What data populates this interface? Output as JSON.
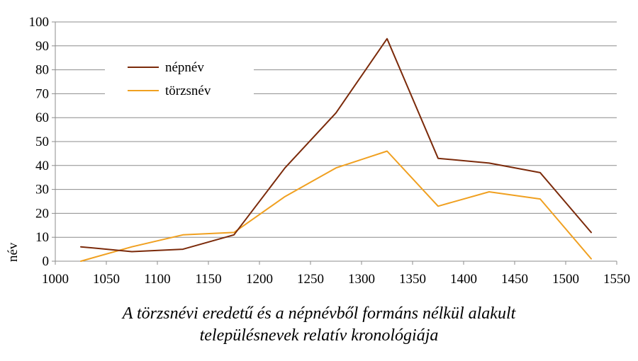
{
  "chart_data": {
    "type": "line",
    "title": "",
    "xlabel": "",
    "ylabel": "név",
    "xlim": [
      1000,
      1550
    ],
    "ylim": [
      0,
      100
    ],
    "xticks": [
      1000,
      1050,
      1100,
      1150,
      1200,
      1250,
      1300,
      1350,
      1400,
      1450,
      1500,
      1550
    ],
    "yticks": [
      0,
      10,
      20,
      30,
      40,
      50,
      60,
      70,
      80,
      90,
      100
    ],
    "grid": "horizontal",
    "legend_position": "top-left",
    "series": [
      {
        "name": "népnév",
        "color": "#7B2A0A",
        "x": [
          1025,
          1075,
          1125,
          1175,
          1225,
          1275,
          1325,
          1375,
          1425,
          1475,
          1525
        ],
        "y": [
          6,
          4,
          5,
          11,
          39,
          62,
          93,
          43,
          41,
          37,
          12
        ]
      },
      {
        "name": "törzsnév",
        "color": "#F0A020",
        "x": [
          1025,
          1075,
          1125,
          1175,
          1225,
          1275,
          1325,
          1375,
          1425,
          1475,
          1525
        ],
        "y": [
          0,
          6,
          11,
          12,
          27,
          39,
          46,
          23,
          29,
          26,
          1
        ]
      }
    ]
  },
  "caption": {
    "line1": "A törzsnévi eredetű és a népnévből formáns nélkül alakult",
    "line2": "településnevek relatív kronológiája"
  }
}
